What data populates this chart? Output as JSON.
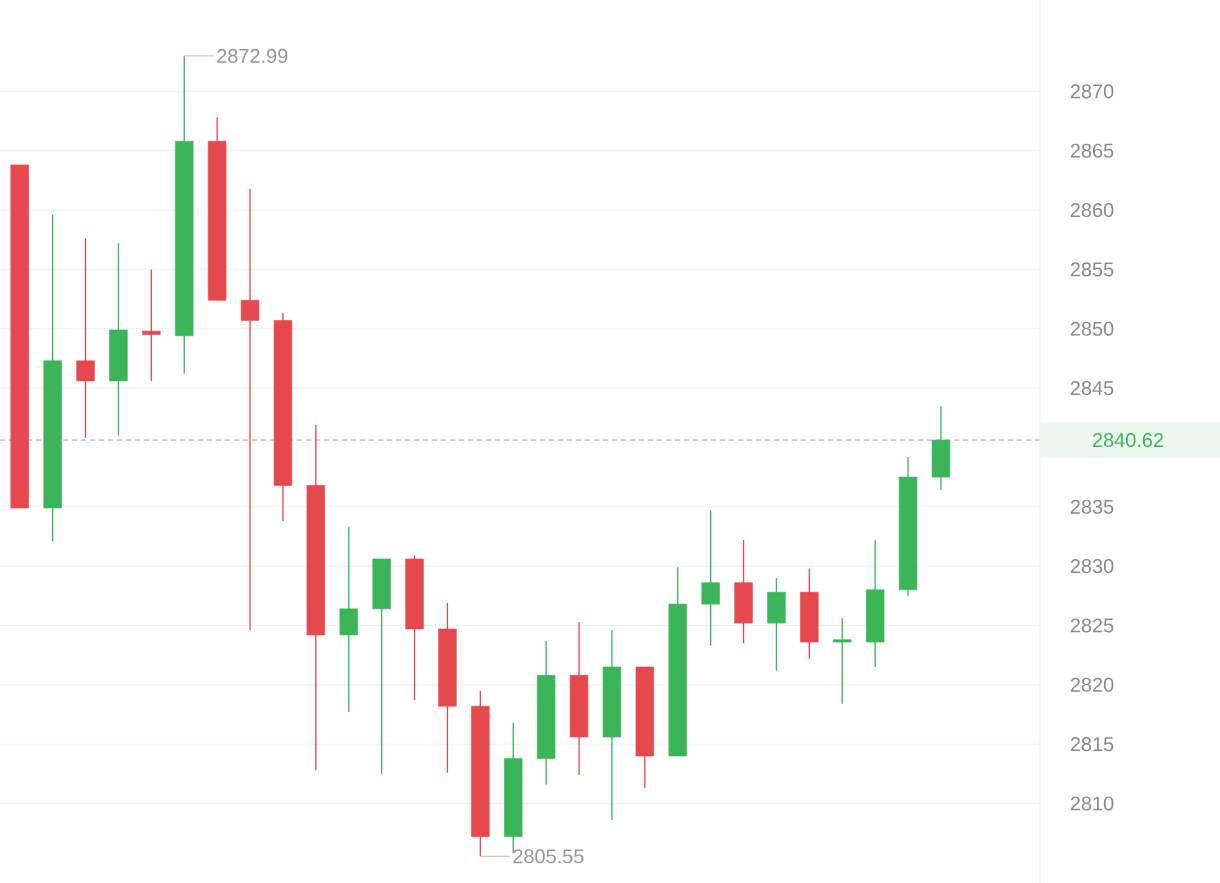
{
  "chart_data": {
    "type": "candlestick",
    "categories": [
      null,
      null,
      null,
      null,
      null,
      null,
      null,
      null,
      null,
      null,
      null,
      null,
      null,
      null,
      null,
      null,
      null,
      null,
      null,
      null,
      null,
      null,
      null,
      null,
      null,
      null,
      null,
      null,
      null
    ],
    "ohlc": [
      [
        2863.8,
        2863.8,
        2834.9,
        2834.9
      ],
      [
        2834.9,
        2859.6,
        2832.1,
        2847.3
      ],
      [
        2847.3,
        2857.6,
        2840.8,
        2845.6
      ],
      [
        2845.6,
        2857.2,
        2841.0,
        2849.9
      ],
      [
        2849.8,
        2855.0,
        2845.6,
        2849.5
      ],
      [
        2849.4,
        2872.99,
        2846.2,
        2865.8
      ],
      [
        2865.8,
        2867.8,
        2852.4,
        2852.4
      ],
      [
        2852.4,
        2861.8,
        2824.6,
        2850.7
      ],
      [
        2850.7,
        2851.3,
        2833.8,
        2836.8
      ],
      [
        2836.8,
        2841.9,
        2812.8,
        2824.2
      ],
      [
        2824.2,
        2833.3,
        2817.7,
        2826.4
      ],
      [
        2826.4,
        2830.6,
        2812.5,
        2830.6
      ],
      [
        2830.6,
        2830.9,
        2818.7,
        2824.7
      ],
      [
        2824.7,
        2826.9,
        2812.6,
        2818.2
      ],
      [
        2818.2,
        2819.5,
        2805.55,
        2807.2
      ],
      [
        2807.2,
        2816.8,
        2805.8,
        2813.8
      ],
      [
        2813.8,
        2823.7,
        2811.6,
        2820.8
      ],
      [
        2820.8,
        2825.3,
        2812.4,
        2815.6
      ],
      [
        2815.6,
        2824.6,
        2808.6,
        2821.5
      ],
      [
        2821.5,
        2821.5,
        2811.3,
        2814.0
      ],
      [
        2814.0,
        2829.9,
        2814.0,
        2826.8
      ],
      [
        2826.8,
        2834.7,
        2823.3,
        2828.6
      ],
      [
        2828.6,
        2832.2,
        2823.5,
        2825.2
      ],
      [
        2825.2,
        2829.0,
        2821.2,
        2827.8
      ],
      [
        2827.8,
        2829.8,
        2822.2,
        2823.6
      ],
      [
        2823.6,
        2825.6,
        2818.4,
        2823.8
      ],
      [
        2823.6,
        2832.2,
        2821.5,
        2828.0
      ],
      [
        2828.0,
        2839.2,
        2827.5,
        2837.5
      ],
      [
        2837.5,
        2843.5,
        2836.4,
        2840.62
      ]
    ],
    "colors": [
      "#e5484d",
      "#3cb55a",
      "#e5484d",
      "#3cb55a",
      "#e5484d",
      "#3cb55a",
      "#e5484d",
      "#e5484d",
      "#e5484d",
      "#e5484d",
      "#3cb55a",
      "#3cb55a",
      "#e5484d",
      "#e5484d",
      "#e5484d",
      "#3cb55a",
      "#3cb55a",
      "#e5484d",
      "#3cb55a",
      "#e5484d",
      "#3cb55a",
      "#3cb55a",
      "#e5484d",
      "#3cb55a",
      "#e5484d",
      "#3cb55a",
      "#3cb55a",
      "#3cb55a",
      "#3cb55a"
    ],
    "ylim": [
      2803.3,
      2877.7
    ],
    "yticks": [
      2810,
      2815,
      2820,
      2825,
      2830,
      2835,
      2845,
      2850,
      2855,
      2860,
      2865,
      2870
    ],
    "grid": "y",
    "ref_lines": [
      {
        "axis": "y",
        "value": 2840.62,
        "label": "2840.62",
        "color": "#a1a1a1",
        "line_style": "dashed"
      }
    ],
    "annotations": [
      "2872.99",
      "2805.55"
    ]
  }
}
